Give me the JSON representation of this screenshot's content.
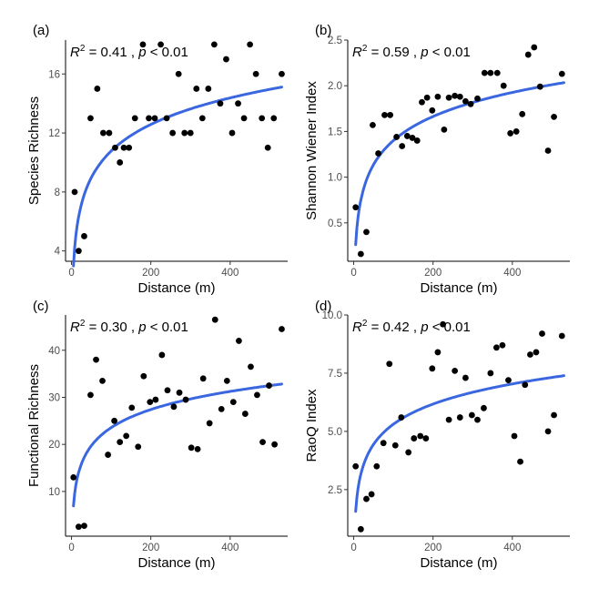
{
  "chart_data": [
    {
      "type": "scatter",
      "panel": "(a)",
      "xlabel": "Distance (m)",
      "ylabel": "Species Richness",
      "xlim": [
        -15,
        545
      ],
      "ylim": [
        3.3,
        18.3
      ],
      "xticks": [
        0,
        200,
        400
      ],
      "yticks": [
        4,
        8,
        12,
        16
      ],
      "annotation": {
        "r2": "R",
        "sup": "2",
        "stat": " = 0.41 , ",
        "p": "p",
        "tail": " < 0.01"
      },
      "points": [
        [
          8,
          8
        ],
        [
          18,
          4
        ],
        [
          32,
          5
        ],
        [
          48,
          13
        ],
        [
          65,
          15
        ],
        [
          80,
          12
        ],
        [
          95,
          12
        ],
        [
          110,
          11
        ],
        [
          122,
          10
        ],
        [
          132,
          11
        ],
        [
          145,
          11
        ],
        [
          160,
          13
        ],
        [
          180,
          18
        ],
        [
          195,
          13
        ],
        [
          210,
          13
        ],
        [
          225,
          18
        ],
        [
          240,
          13
        ],
        [
          255,
          12
        ],
        [
          270,
          16
        ],
        [
          285,
          12
        ],
        [
          300,
          12
        ],
        [
          315,
          15
        ],
        [
          330,
          13
        ],
        [
          345,
          15
        ],
        [
          360,
          18
        ],
        [
          375,
          14
        ],
        [
          390,
          17
        ],
        [
          405,
          12
        ],
        [
          420,
          14
        ],
        [
          435,
          13
        ],
        [
          450,
          18
        ],
        [
          465,
          16
        ],
        [
          480,
          13
        ],
        [
          495,
          11
        ],
        [
          510,
          13
        ],
        [
          530,
          16
        ]
      ],
      "fit": {
        "a": -1.2,
        "b": 2.6
      }
    },
    {
      "type": "scatter",
      "panel": "(b)",
      "xlabel": "Distance (m)",
      "ylabel": "Shannon Wiener Index",
      "xlim": [
        -15,
        545
      ],
      "ylim": [
        0.08,
        2.5
      ],
      "xticks": [
        0,
        200,
        400
      ],
      "yticks": [
        0.5,
        1.0,
        1.5,
        2.0,
        2.5
      ],
      "yticklabels": [
        "0.5",
        "1.0",
        "1.5",
        "2.0",
        "2.5"
      ],
      "annotation": {
        "r2": "R",
        "sup": "2",
        "stat": " = 0.59 , ",
        "p": "p",
        "tail": " < 0.01"
      },
      "points": [
        [
          5,
          0.67
        ],
        [
          18,
          0.16
        ],
        [
          32,
          0.4
        ],
        [
          48,
          1.57
        ],
        [
          62,
          1.26
        ],
        [
          78,
          1.68
        ],
        [
          92,
          1.68
        ],
        [
          108,
          1.44
        ],
        [
          122,
          1.34
        ],
        [
          135,
          1.45
        ],
        [
          148,
          1.43
        ],
        [
          160,
          1.4
        ],
        [
          172,
          1.82
        ],
        [
          185,
          1.87
        ],
        [
          198,
          1.73
        ],
        [
          212,
          1.88
        ],
        [
          228,
          1.52
        ],
        [
          240,
          1.87
        ],
        [
          255,
          1.89
        ],
        [
          268,
          1.88
        ],
        [
          282,
          1.83
        ],
        [
          295,
          1.8
        ],
        [
          312,
          1.86
        ],
        [
          330,
          2.14
        ],
        [
          345,
          2.14
        ],
        [
          362,
          2.14
        ],
        [
          378,
          2.0
        ],
        [
          395,
          1.48
        ],
        [
          410,
          1.5
        ],
        [
          425,
          1.69
        ],
        [
          440,
          2.34
        ],
        [
          455,
          2.42
        ],
        [
          470,
          1.99
        ],
        [
          490,
          1.29
        ],
        [
          505,
          1.66
        ],
        [
          525,
          2.13
        ]
      ],
      "fit": {
        "a": -0.35,
        "b": 0.38
      }
    },
    {
      "type": "scatter",
      "panel": "(c)",
      "xlabel": "Distance (m)",
      "ylabel": "Functional Richness",
      "xlim": [
        -15,
        545
      ],
      "ylim": [
        0.5,
        47.5
      ],
      "xticks": [
        0,
        200,
        400
      ],
      "yticks": [
        10,
        20,
        30,
        40
      ],
      "annotation": {
        "r2": "R",
        "sup": "2",
        "stat": " = 0.30 , ",
        "p": "p",
        "tail": " < 0.01"
      },
      "points": [
        [
          5,
          13
        ],
        [
          18,
          2.5
        ],
        [
          32,
          2.7
        ],
        [
          48,
          30.5
        ],
        [
          62,
          38
        ],
        [
          78,
          33.5
        ],
        [
          92,
          17.8
        ],
        [
          108,
          25
        ],
        [
          122,
          20.5
        ],
        [
          138,
          21.8
        ],
        [
          152,
          27.8
        ],
        [
          168,
          19.5
        ],
        [
          182,
          34.5
        ],
        [
          198,
          29
        ],
        [
          212,
          29.5
        ],
        [
          228,
          39
        ],
        [
          242,
          31.5
        ],
        [
          258,
          28
        ],
        [
          272,
          31
        ],
        [
          288,
          29.5
        ],
        [
          302,
          19.3
        ],
        [
          318,
          19
        ],
        [
          332,
          34
        ],
        [
          348,
          24.5
        ],
        [
          362,
          46.5
        ],
        [
          378,
          27.5
        ],
        [
          392,
          33.5
        ],
        [
          408,
          29
        ],
        [
          422,
          42
        ],
        [
          438,
          26.5
        ],
        [
          452,
          36.5
        ],
        [
          468,
          30.5
        ],
        [
          482,
          20.5
        ],
        [
          498,
          32.5
        ],
        [
          512,
          20
        ],
        [
          530,
          44.5
        ]
      ],
      "fit": {
        "a": -2.0,
        "b": 5.55
      }
    },
    {
      "type": "scatter",
      "panel": "(d)",
      "xlabel": "Distance (m)",
      "ylabel": "RaoQ Index",
      "xlim": [
        -15,
        545
      ],
      "ylim": [
        0.5,
        10.0
      ],
      "xticks": [
        0,
        200,
        400
      ],
      "yticks": [
        2.5,
        5.0,
        7.5,
        10.0
      ],
      "yticklabels": [
        "2.5",
        "5.0",
        "7.5",
        "10.0"
      ],
      "annotation": {
        "r2": "R",
        "sup": "2",
        "stat": " = 0.42 , ",
        "p": "p",
        "tail": " < 0.01"
      },
      "points": [
        [
          5,
          3.5
        ],
        [
          18,
          0.8
        ],
        [
          32,
          2.1
        ],
        [
          45,
          2.3
        ],
        [
          58,
          3.5
        ],
        [
          75,
          4.5
        ],
        [
          90,
          7.9
        ],
        [
          105,
          4.4
        ],
        [
          120,
          5.6
        ],
        [
          138,
          4.1
        ],
        [
          152,
          4.7
        ],
        [
          168,
          4.8
        ],
        [
          182,
          4.7
        ],
        [
          198,
          7.7
        ],
        [
          212,
          8.4
        ],
        [
          225,
          9.6
        ],
        [
          240,
          5.5
        ],
        [
          255,
          7.6
        ],
        [
          268,
          5.6
        ],
        [
          282,
          7.3
        ],
        [
          298,
          5.7
        ],
        [
          312,
          5.5
        ],
        [
          328,
          6.0
        ],
        [
          345,
          7.5
        ],
        [
          360,
          8.6
        ],
        [
          375,
          8.7
        ],
        [
          390,
          7.2
        ],
        [
          405,
          4.8
        ],
        [
          420,
          3.7
        ],
        [
          432,
          7.0
        ],
        [
          445,
          8.3
        ],
        [
          460,
          8.4
        ],
        [
          475,
          9.2
        ],
        [
          490,
          5.0
        ],
        [
          505,
          5.7
        ],
        [
          525,
          9.1
        ]
      ],
      "fit": {
        "a": -0.45,
        "b": 1.25
      }
    }
  ]
}
